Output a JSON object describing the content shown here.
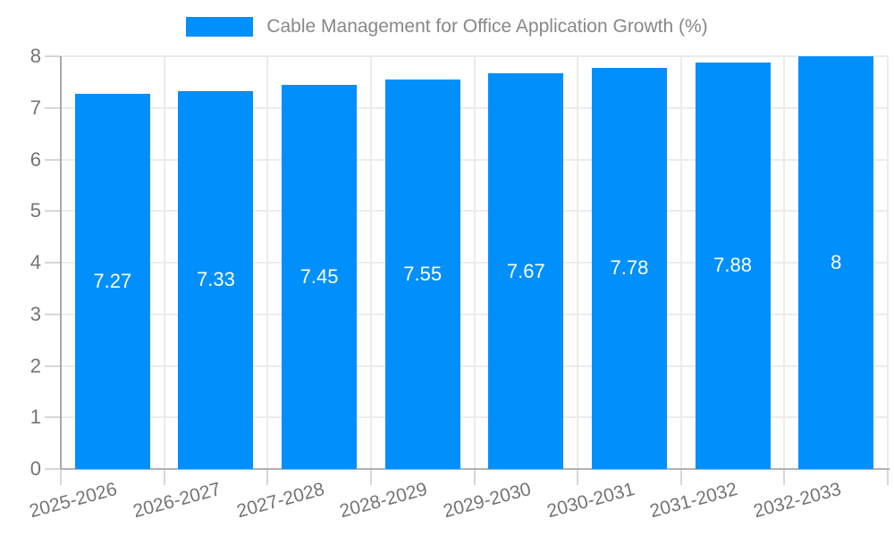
{
  "chart_data": {
    "type": "bar",
    "title": "Cable Management for Office Application Growth (%)",
    "categories": [
      "2025-2026",
      "2026-2027",
      "2027-2028",
      "2028-2029",
      "2029-2030",
      "2030-2031",
      "2031-2032",
      "2032-2033"
    ],
    "series": [
      {
        "name": "Cable Management for Office Application Growth (%)",
        "values": [
          7.27,
          7.33,
          7.45,
          7.55,
          7.67,
          7.78,
          7.88,
          8
        ]
      }
    ],
    "value_labels": [
      "7.27",
      "7.33",
      "7.45",
      "7.55",
      "7.67",
      "7.78",
      "7.88",
      "8"
    ],
    "xlabel": "",
    "ylabel": "",
    "ylim": [
      0,
      8
    ],
    "ytick_labels": [
      "0",
      "1",
      "2",
      "3",
      "4",
      "5",
      "6",
      "7",
      "8"
    ],
    "grid": true,
    "legend_position": "top",
    "x_label_rotation": -15,
    "colors": {
      "bar": "#008FFB",
      "bar_value_text": "#ffffff",
      "axis_label": "#747474",
      "title": "#888888",
      "gridline": "#ececec",
      "axis_line": "#aaaaaa",
      "tick": "#d7d7d7",
      "background": "#ffffff"
    }
  }
}
